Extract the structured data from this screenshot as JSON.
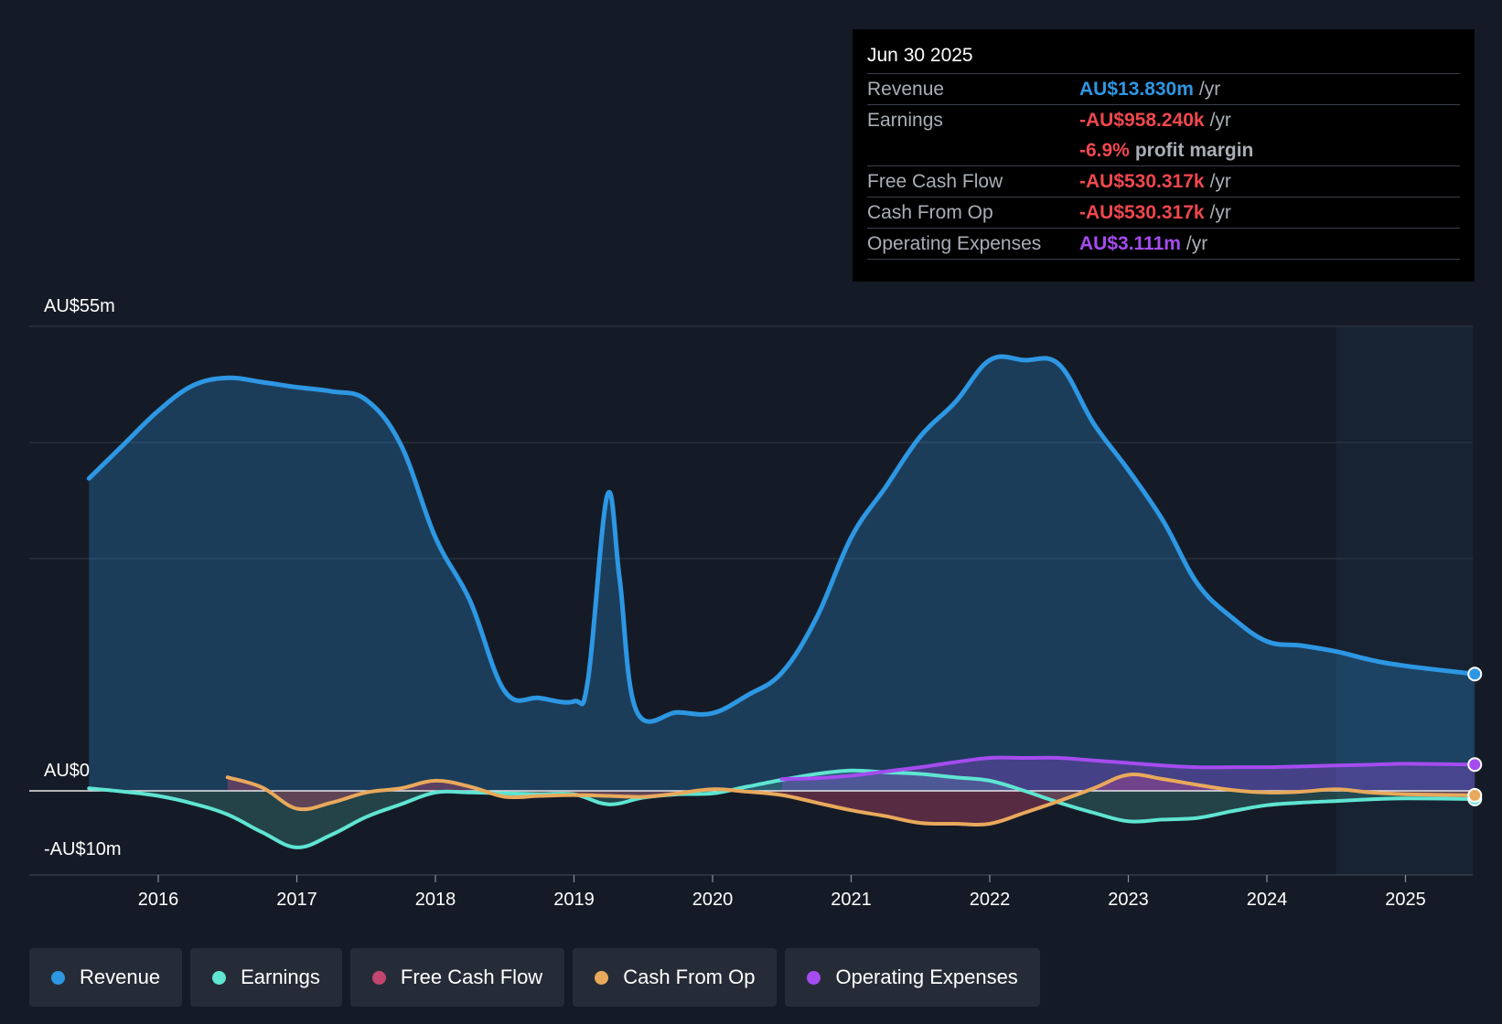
{
  "colors": {
    "revenue": "#2d97e3",
    "earnings": "#5fe5d2",
    "fcf": "#c2466f",
    "cfo": "#e9a95c",
    "opex": "#a54cf0",
    "negative": "#f0474e"
  },
  "tooltip": {
    "date": "Jun 30 2025",
    "rows": [
      {
        "label": "Revenue",
        "value": "AU$13.830m",
        "unit": "/yr"
      },
      {
        "label": "Earnings",
        "value": "-AU$958.240k",
        "unit": "/yr"
      },
      {
        "label": "",
        "value": "-6.9%",
        "unit": "profit margin"
      },
      {
        "label": "Free Cash Flow",
        "value": "-AU$530.317k",
        "unit": "/yr"
      },
      {
        "label": "Cash From Op",
        "value": "-AU$530.317k",
        "unit": "/yr"
      },
      {
        "label": "Operating Expenses",
        "value": "AU$3.111m",
        "unit": "/yr"
      }
    ]
  },
  "legend": [
    {
      "label": "Revenue"
    },
    {
      "label": "Earnings"
    },
    {
      "label": "Free Cash Flow"
    },
    {
      "label": "Cash From Op"
    },
    {
      "label": "Operating Expenses"
    }
  ],
  "chart_data": {
    "type": "area",
    "title": "",
    "xlabel": "",
    "ylabel": "",
    "y_axis_labels": [
      "AU$55m",
      "AU$0",
      "-AU$10m"
    ],
    "ylim": [
      -10,
      55
    ],
    "xlim": [
      2015.42,
      2025.5
    ],
    "x_ticks": [
      2016,
      2017,
      2018,
      2019,
      2020,
      2021,
      2022,
      2023,
      2024,
      2025
    ],
    "grid": true,
    "legend_position": "bottom",
    "forecast_start": 2024.5,
    "series": [
      {
        "name": "Revenue",
        "key": "revenue",
        "fill": true,
        "points": [
          [
            2015.5,
            37
          ],
          [
            2015.75,
            41
          ],
          [
            2016.0,
            45
          ],
          [
            2016.25,
            48
          ],
          [
            2016.5,
            48.9
          ],
          [
            2016.75,
            48.4
          ],
          [
            2017.0,
            47.8
          ],
          [
            2017.25,
            47.3
          ],
          [
            2017.5,
            46.3
          ],
          [
            2017.75,
            41
          ],
          [
            2018.0,
            30
          ],
          [
            2018.25,
            22.5
          ],
          [
            2018.5,
            11.8
          ],
          [
            2018.75,
            11
          ],
          [
            2019.0,
            10.6
          ],
          [
            2019.1,
            13
          ],
          [
            2019.24,
            35
          ],
          [
            2019.33,
            25
          ],
          [
            2019.45,
            9.5
          ],
          [
            2019.75,
            9.3
          ],
          [
            2020.0,
            9.2
          ],
          [
            2020.25,
            11.3
          ],
          [
            2020.5,
            14
          ],
          [
            2020.75,
            20.5
          ],
          [
            2021.0,
            30
          ],
          [
            2021.25,
            36
          ],
          [
            2021.5,
            42
          ],
          [
            2021.75,
            46
          ],
          [
            2022.0,
            51
          ],
          [
            2022.25,
            51
          ],
          [
            2022.5,
            50.5
          ],
          [
            2022.75,
            43.5
          ],
          [
            2023.0,
            38
          ],
          [
            2023.25,
            32
          ],
          [
            2023.5,
            24.5
          ],
          [
            2023.75,
            20.5
          ],
          [
            2024.0,
            17.7
          ],
          [
            2024.25,
            17.2
          ],
          [
            2024.5,
            16.5
          ],
          [
            2024.75,
            15.5
          ],
          [
            2025.0,
            14.8
          ],
          [
            2025.5,
            13.83
          ]
        ]
      },
      {
        "name": "Earnings",
        "key": "earnings",
        "fill": true,
        "points": [
          [
            2015.5,
            0.3
          ],
          [
            2015.75,
            -0.1
          ],
          [
            2016.0,
            -0.6
          ],
          [
            2016.25,
            -1.5
          ],
          [
            2016.5,
            -2.8
          ],
          [
            2016.75,
            -4.9
          ],
          [
            2017.0,
            -6.7
          ],
          [
            2017.25,
            -5.2
          ],
          [
            2017.5,
            -3.1
          ],
          [
            2017.75,
            -1.6
          ],
          [
            2018.0,
            -0.2
          ],
          [
            2018.25,
            -0.2
          ],
          [
            2018.5,
            -0.3
          ],
          [
            2018.75,
            -0.4
          ],
          [
            2019.0,
            -0.4
          ],
          [
            2019.25,
            -1.6
          ],
          [
            2019.5,
            -0.8
          ],
          [
            2019.75,
            -0.4
          ],
          [
            2020.0,
            -0.3
          ],
          [
            2020.25,
            0.5
          ],
          [
            2020.5,
            1.3
          ],
          [
            2020.75,
            2.0
          ],
          [
            2021.0,
            2.4
          ],
          [
            2021.25,
            2.2
          ],
          [
            2021.5,
            2.0
          ],
          [
            2021.75,
            1.6
          ],
          [
            2022.0,
            1.2
          ],
          [
            2022.25,
            0
          ],
          [
            2022.5,
            -1.4
          ],
          [
            2022.75,
            -2.6
          ],
          [
            2023.0,
            -3.6
          ],
          [
            2023.25,
            -3.4
          ],
          [
            2023.5,
            -3.2
          ],
          [
            2023.75,
            -2.4
          ],
          [
            2024.0,
            -1.7
          ],
          [
            2024.25,
            -1.4
          ],
          [
            2024.5,
            -1.2
          ],
          [
            2024.75,
            -1.0
          ],
          [
            2025.0,
            -0.9
          ],
          [
            2025.5,
            -0.96
          ]
        ]
      },
      {
        "name": "Free Cash Flow",
        "key": "fcf",
        "fill": true,
        "points": [
          [
            2016.5,
            1.6
          ],
          [
            2016.75,
            0.4
          ],
          [
            2017.0,
            -2.1
          ],
          [
            2017.25,
            -1.4
          ],
          [
            2017.5,
            -0.2
          ],
          [
            2017.75,
            0.3
          ],
          [
            2018.0,
            1.2
          ],
          [
            2018.25,
            0.5
          ],
          [
            2018.5,
            -0.7
          ],
          [
            2018.75,
            -0.6
          ],
          [
            2019.0,
            -0.5
          ],
          [
            2019.25,
            -0.6
          ],
          [
            2019.5,
            -0.7
          ],
          [
            2019.75,
            -0.3
          ],
          [
            2020.0,
            0.2
          ],
          [
            2020.25,
            -0.1
          ],
          [
            2020.5,
            -0.5
          ],
          [
            2020.75,
            -1.4
          ],
          [
            2021.0,
            -2.3
          ],
          [
            2021.25,
            -3.0
          ],
          [
            2021.5,
            -3.8
          ],
          [
            2021.75,
            -3.9
          ],
          [
            2022.0,
            -3.9
          ],
          [
            2022.25,
            -2.6
          ],
          [
            2022.5,
            -1.2
          ],
          [
            2022.75,
            0.3
          ],
          [
            2023.0,
            1.9
          ],
          [
            2023.25,
            1.4
          ],
          [
            2023.5,
            0.7
          ],
          [
            2023.75,
            0.1
          ],
          [
            2024.0,
            -0.2
          ],
          [
            2024.25,
            -0.1
          ],
          [
            2024.5,
            0.2
          ],
          [
            2024.75,
            -0.2
          ],
          [
            2025.0,
            -0.4
          ],
          [
            2025.5,
            -0.53
          ]
        ]
      },
      {
        "name": "Cash From Op",
        "key": "cfo",
        "fill": false,
        "points": [
          [
            2016.5,
            1.6
          ],
          [
            2016.75,
            0.4
          ],
          [
            2017.0,
            -2.1
          ],
          [
            2017.25,
            -1.4
          ],
          [
            2017.5,
            -0.2
          ],
          [
            2017.75,
            0.3
          ],
          [
            2018.0,
            1.2
          ],
          [
            2018.25,
            0.5
          ],
          [
            2018.5,
            -0.7
          ],
          [
            2018.75,
            -0.6
          ],
          [
            2019.0,
            -0.5
          ],
          [
            2019.25,
            -0.6
          ],
          [
            2019.5,
            -0.7
          ],
          [
            2019.75,
            -0.3
          ],
          [
            2020.0,
            0.2
          ],
          [
            2020.25,
            -0.1
          ],
          [
            2020.5,
            -0.5
          ],
          [
            2020.75,
            -1.4
          ],
          [
            2021.0,
            -2.3
          ],
          [
            2021.25,
            -3.0
          ],
          [
            2021.5,
            -3.8
          ],
          [
            2021.75,
            -3.9
          ],
          [
            2022.0,
            -3.9
          ],
          [
            2022.25,
            -2.6
          ],
          [
            2022.5,
            -1.2
          ],
          [
            2022.75,
            0.3
          ],
          [
            2023.0,
            1.9
          ],
          [
            2023.25,
            1.4
          ],
          [
            2023.5,
            0.7
          ],
          [
            2023.75,
            0.1
          ],
          [
            2024.0,
            -0.2
          ],
          [
            2024.25,
            -0.1
          ],
          [
            2024.5,
            0.2
          ],
          [
            2024.75,
            -0.2
          ],
          [
            2025.0,
            -0.4
          ],
          [
            2025.5,
            -0.53
          ]
        ]
      },
      {
        "name": "Operating Expenses",
        "key": "opex",
        "fill": true,
        "points": [
          [
            2020.5,
            1.4
          ],
          [
            2020.75,
            1.5
          ],
          [
            2021.0,
            1.8
          ],
          [
            2021.25,
            2.3
          ],
          [
            2021.5,
            2.8
          ],
          [
            2021.75,
            3.4
          ],
          [
            2022.0,
            3.9
          ],
          [
            2022.25,
            3.9
          ],
          [
            2022.5,
            3.9
          ],
          [
            2022.75,
            3.6
          ],
          [
            2023.0,
            3.3
          ],
          [
            2023.25,
            3.0
          ],
          [
            2023.5,
            2.8
          ],
          [
            2023.75,
            2.8
          ],
          [
            2024.0,
            2.8
          ],
          [
            2024.25,
            2.9
          ],
          [
            2024.5,
            3.0
          ],
          [
            2024.75,
            3.1
          ],
          [
            2025.0,
            3.2
          ],
          [
            2025.5,
            3.11
          ]
        ]
      }
    ]
  }
}
